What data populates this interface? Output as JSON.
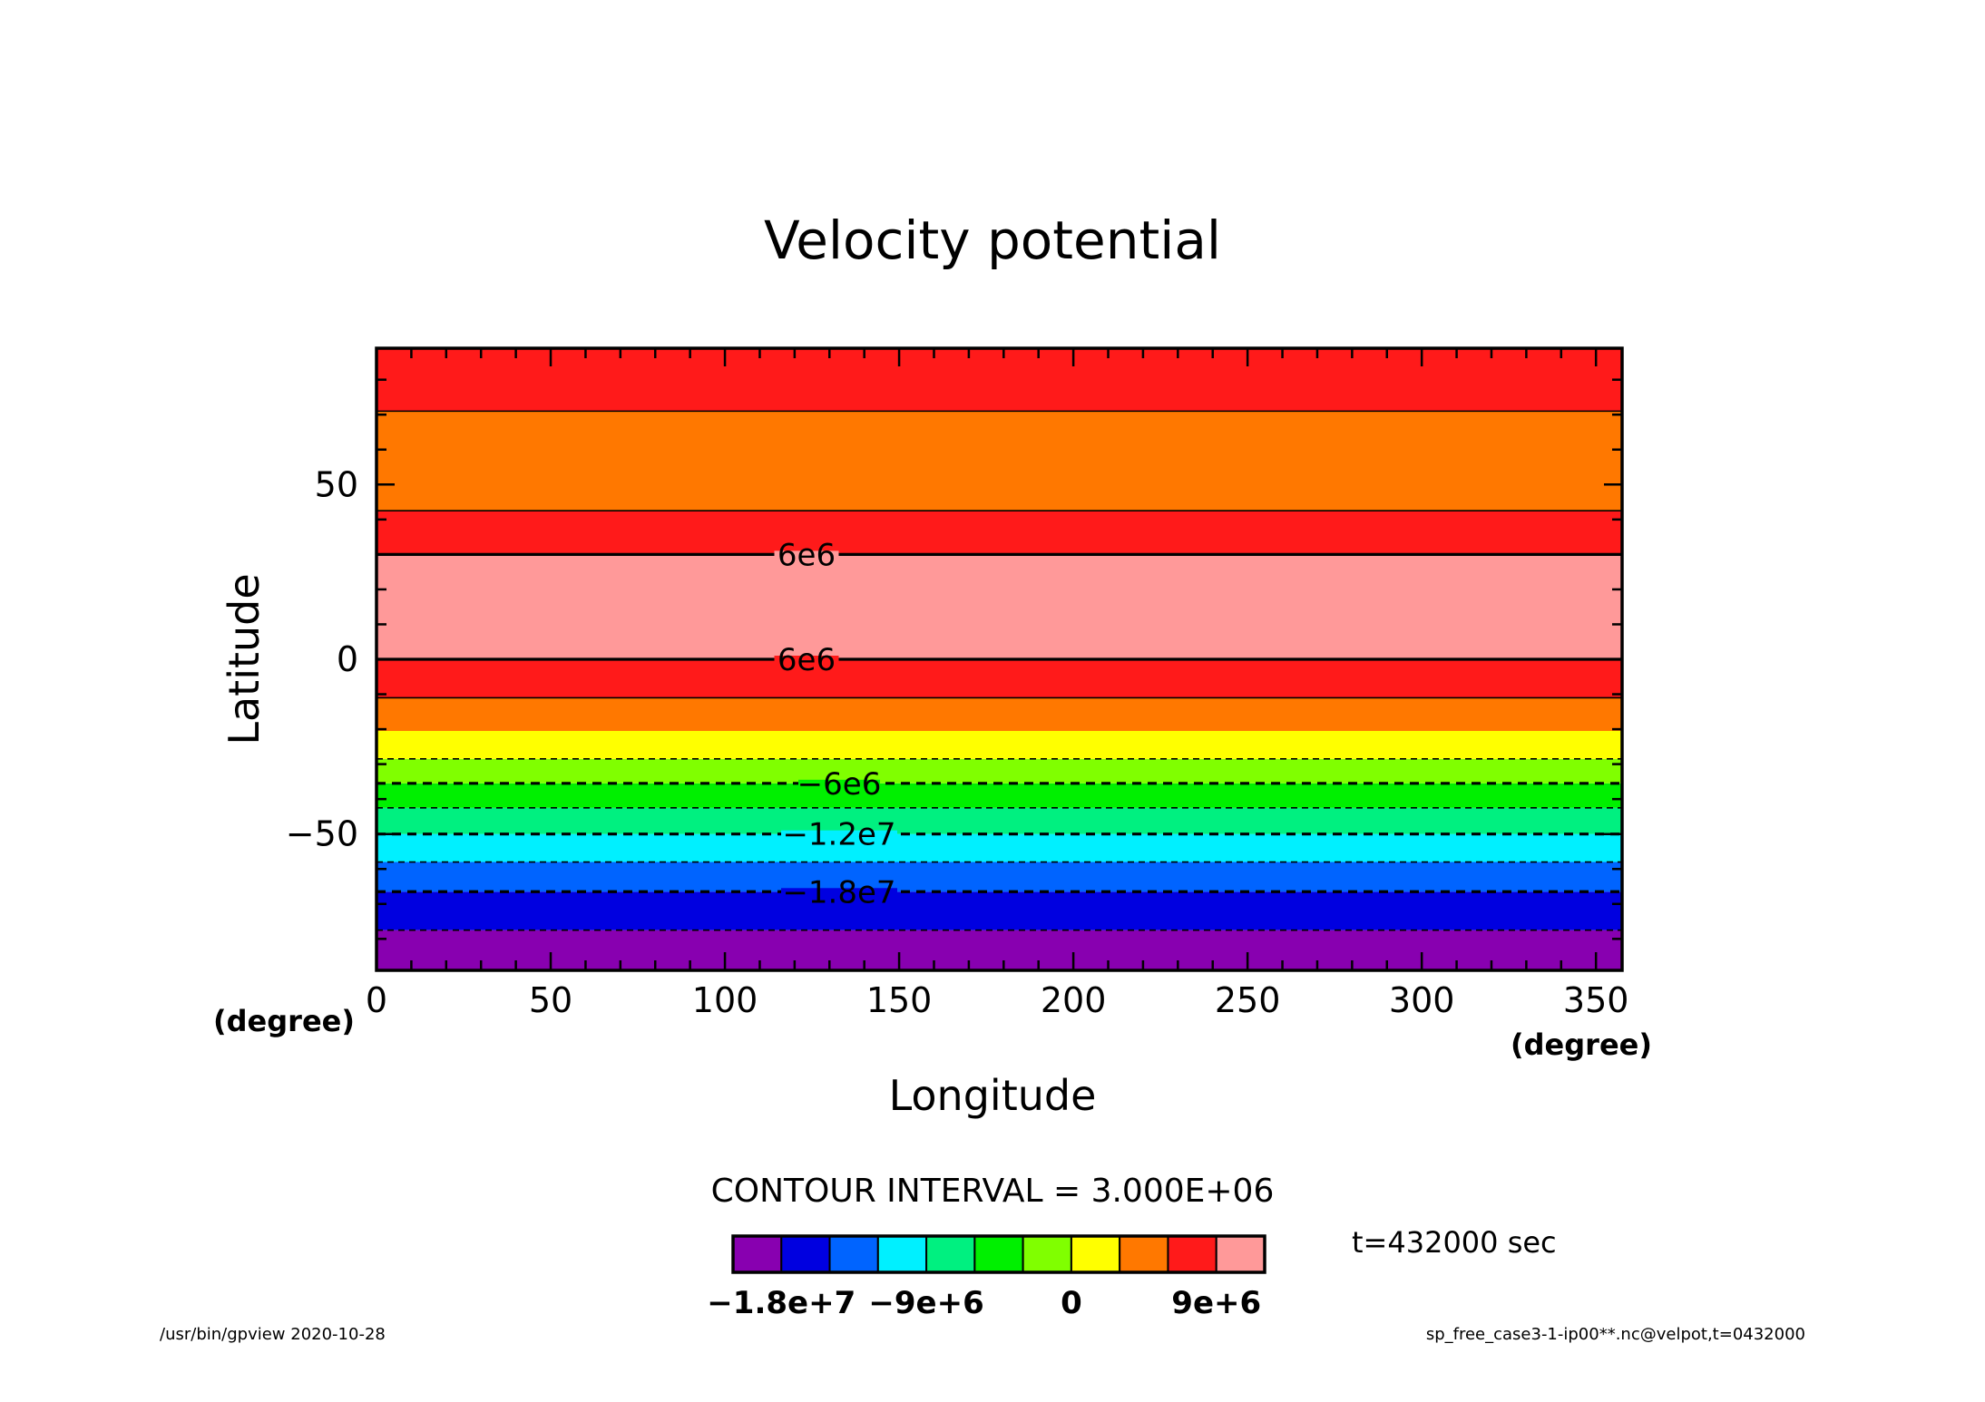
{
  "chart_data": {
    "type": "heatmap",
    "title": "Velocity potential",
    "xlabel": "Longitude",
    "ylabel": "Latitude",
    "x_unit": "(degree)",
    "y_unit": "(degree)",
    "xlim": [
      0,
      357.5
    ],
    "ylim": [
      -89,
      89
    ],
    "x_ticks": [
      0,
      50,
      100,
      150,
      200,
      250,
      300,
      350
    ],
    "x_tick_labels": [
      "0",
      "50",
      "100",
      "150",
      "200",
      "250",
      "300",
      "350"
    ],
    "y_ticks": [
      -50,
      0,
      50
    ],
    "y_tick_labels": [
      "−50",
      "0",
      "50"
    ],
    "bands": [
      {
        "lat_min": -89,
        "lat_max": -77.5,
        "color": "#8800b0"
      },
      {
        "lat_min": -77.5,
        "lat_max": -66.5,
        "color": "#0000e0"
      },
      {
        "lat_min": -66.5,
        "lat_max": -58,
        "color": "#0064ff"
      },
      {
        "lat_min": -58,
        "lat_max": -50,
        "color": "#00f0ff"
      },
      {
        "lat_min": -50,
        "lat_max": -42.5,
        "color": "#00f080"
      },
      {
        "lat_min": -42.5,
        "lat_max": -35.5,
        "color": "#00f000"
      },
      {
        "lat_min": -35.5,
        "lat_max": -28.5,
        "color": "#80ff00"
      },
      {
        "lat_min": -28.5,
        "lat_max": -20.5,
        "color": "#ffff00"
      },
      {
        "lat_min": -20.5,
        "lat_max": -11,
        "color": "#ff7800"
      },
      {
        "lat_min": -11,
        "lat_max": 0,
        "color": "#ff1a1a"
      },
      {
        "lat_min": 0,
        "lat_max": 30,
        "color": "#ff9999"
      },
      {
        "lat_min": 30,
        "lat_max": 42.5,
        "color": "#ff1a1a"
      },
      {
        "lat_min": 42.5,
        "lat_max": 71,
        "color": "#ff7800"
      },
      {
        "lat_min": 71,
        "lat_max": 89,
        "color": "#ff1a1a"
      }
    ],
    "contours": [
      {
        "lat": -77.5,
        "dashed": true,
        "bold": false
      },
      {
        "lat": -66.5,
        "dashed": true,
        "bold": true,
        "label": "−1.8e7"
      },
      {
        "lat": -58,
        "dashed": true,
        "bold": false
      },
      {
        "lat": -50,
        "dashed": true,
        "bold": true,
        "label": "−1.2e7"
      },
      {
        "lat": -42.5,
        "dashed": true,
        "bold": false
      },
      {
        "lat": -35.5,
        "dashed": true,
        "bold": true,
        "label": "−6e6"
      },
      {
        "lat": -28.5,
        "dashed": true,
        "bold": false
      },
      {
        "lat": -11,
        "dashed": false,
        "bold": false
      },
      {
        "lat": 0,
        "dashed": false,
        "bold": true,
        "label": "6e6"
      },
      {
        "lat": 30,
        "dashed": false,
        "bold": true,
        "label": "6e6"
      },
      {
        "lat": 42.5,
        "dashed": false,
        "bold": false
      },
      {
        "lat": 71,
        "dashed": false,
        "bold": false
      }
    ],
    "contour_interval_text": "CONTOUR INTERVAL = 3.000E+06",
    "colorbar": {
      "colors": [
        "#8800b0",
        "#0000e0",
        "#0064ff",
        "#00f0ff",
        "#00f080",
        "#00f000",
        "#80ff00",
        "#ffff00",
        "#ff7800",
        "#ff1a1a",
        "#ff9999"
      ],
      "labels": [
        {
          "boundary": 1,
          "text": "−1.8e+7"
        },
        {
          "boundary": 4,
          "text": "−9e+6"
        },
        {
          "boundary": 7,
          "text": "0"
        },
        {
          "boundary": 10,
          "text": "9e+6"
        }
      ]
    },
    "time_label": "t=432000 sec"
  },
  "footer": {
    "left": "/usr/bin/gpview   2020-10-28",
    "right": "sp_free_case3-1-ip00**.nc@velpot,t=0432000"
  }
}
